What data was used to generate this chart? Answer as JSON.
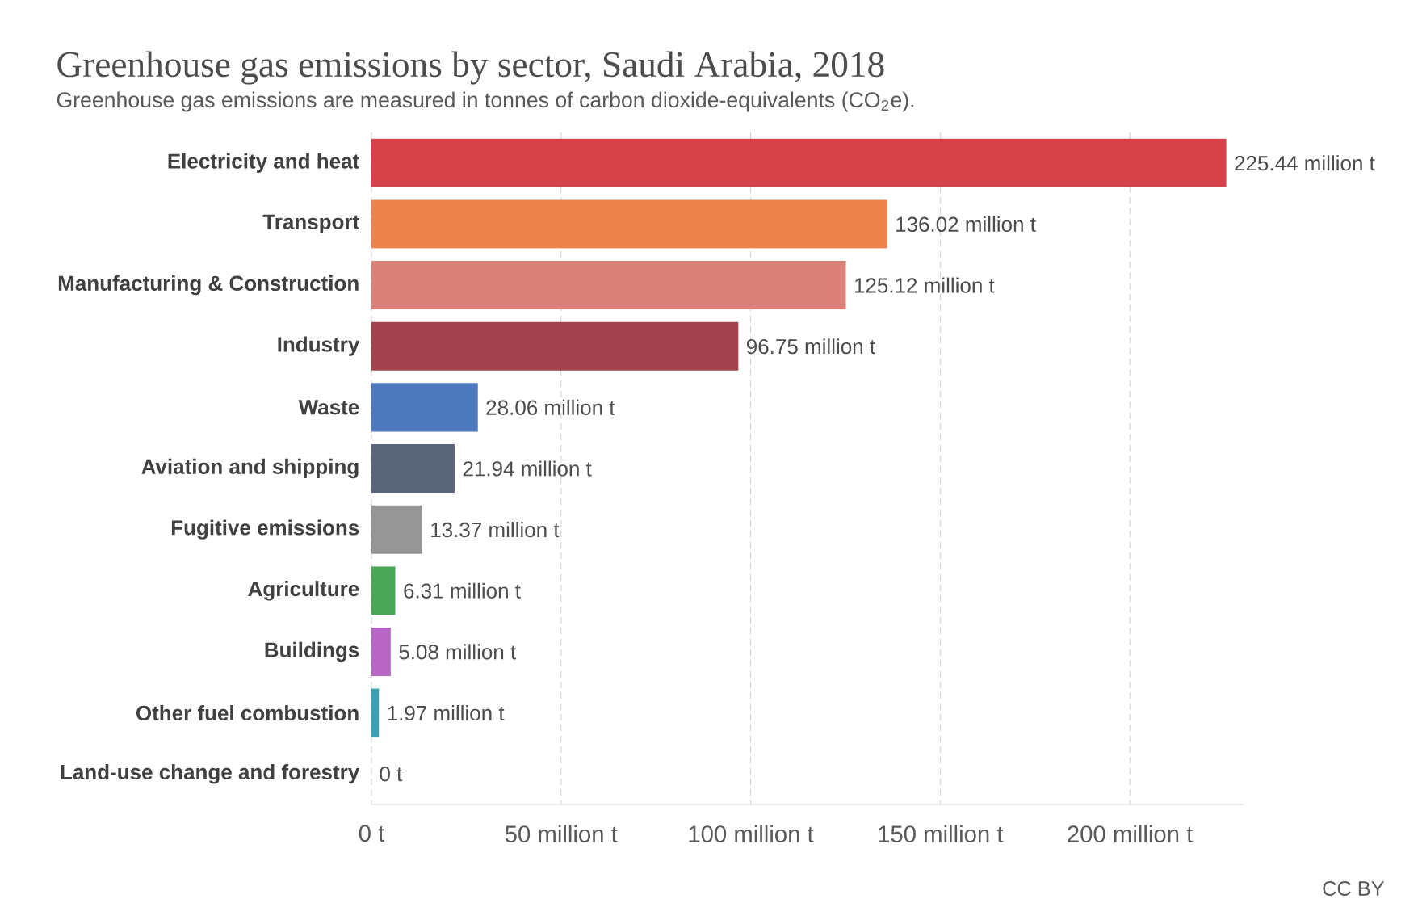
{
  "chart_data": {
    "type": "bar",
    "orientation": "horizontal",
    "title": "Greenhouse gas emissions by sector, Saudi Arabia, 2018",
    "subtitle": "Greenhouse gas emissions are measured in tonnes of carbon dioxide-equivalents (CO$_{2}$e).",
    "categories": [
      "Electricity and heat",
      "Transport",
      "Manufacturing & Construction",
      "Industry",
      "Waste",
      "Aviation and shipping",
      "Fugitive emissions",
      "Agriculture",
      "Buildings",
      "Other fuel combustion",
      "Land-use change and forestry"
    ],
    "values": [
      225.44,
      136.02,
      125.12,
      96.75,
      28.06,
      21.94,
      13.37,
      6.31,
      5.08,
      1.97,
      0
    ],
    "value_labels": [
      "225.44 million t",
      "136.02 million t",
      "125.12 million t",
      "96.75 million t",
      "28.06 million t",
      "21.94 million t",
      "13.37 million t",
      "6.31 million t",
      "5.08 million t",
      "1.97 million t",
      "0 t"
    ],
    "colors": [
      "#d6424a",
      "#ee834d",
      "#da8179",
      "#a4434f",
      "#4e78bd",
      "#5a6579",
      "#969696",
      "#4aa658",
      "#b867c6",
      "#3ba2b4",
      "#cccccc"
    ],
    "xticks": [
      {
        "value": 0,
        "label": "0 t"
      },
      {
        "value": 50,
        "label": "50 million t"
      },
      {
        "value": 100,
        "label": "100 million t"
      },
      {
        "value": 150,
        "label": "150 million t"
      },
      {
        "value": 200,
        "label": "200 million t"
      }
    ],
    "xlim": [
      0,
      230
    ],
    "grid": "x",
    "annotations": [
      "CC BY"
    ]
  }
}
